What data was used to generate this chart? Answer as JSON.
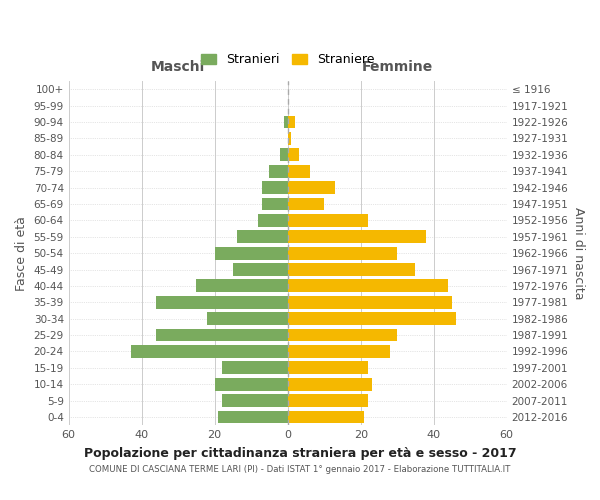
{
  "age_groups": [
    "0-4",
    "5-9",
    "10-14",
    "15-19",
    "20-24",
    "25-29",
    "30-34",
    "35-39",
    "40-44",
    "45-49",
    "50-54",
    "55-59",
    "60-64",
    "65-69",
    "70-74",
    "75-79",
    "80-84",
    "85-89",
    "90-94",
    "95-99",
    "100+"
  ],
  "birth_years": [
    "2012-2016",
    "2007-2011",
    "2002-2006",
    "1997-2001",
    "1992-1996",
    "1987-1991",
    "1982-1986",
    "1977-1981",
    "1972-1976",
    "1967-1971",
    "1962-1966",
    "1957-1961",
    "1952-1956",
    "1947-1951",
    "1942-1946",
    "1937-1941",
    "1932-1936",
    "1927-1931",
    "1922-1926",
    "1917-1921",
    "≤ 1916"
  ],
  "maschi": [
    19,
    18,
    20,
    18,
    43,
    36,
    22,
    36,
    25,
    15,
    20,
    14,
    8,
    7,
    7,
    5,
    2,
    0,
    1,
    0,
    0
  ],
  "femmine": [
    21,
    22,
    23,
    22,
    28,
    30,
    46,
    45,
    44,
    35,
    30,
    38,
    22,
    10,
    13,
    6,
    3,
    1,
    2,
    0,
    0
  ],
  "male_color": "#7aab5e",
  "female_color": "#f5b800",
  "dashed_line_color": "#888888",
  "grid_color": "#cccccc",
  "bg_color": "#ffffff",
  "xlim": 60,
  "title": "Popolazione per cittadinanza straniera per età e sesso - 2017",
  "subtitle": "COMUNE DI CASCIANA TERME LARI (PI) - Dati ISTAT 1° gennaio 2017 - Elaborazione TUTTITALIA.IT",
  "left_header": "Maschi",
  "right_header": "Femmine",
  "left_ylabel": "Fasce di età",
  "right_ylabel": "Anni di nascita",
  "legend_male": "Stranieri",
  "legend_female": "Straniere"
}
